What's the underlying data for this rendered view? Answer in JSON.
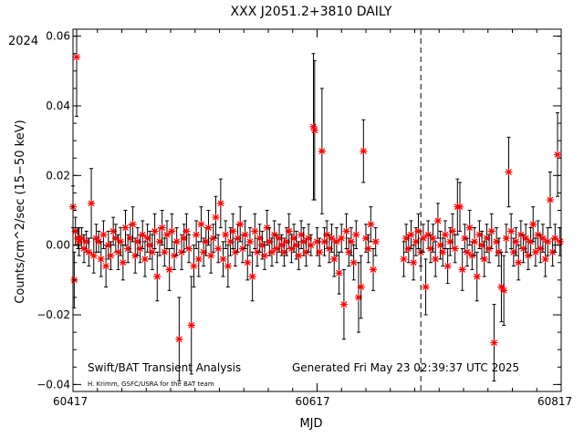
{
  "chart_data": {
    "type": "scatter",
    "title": "XXX J2051.2+3810 DAILY",
    "xlabel": "MJD",
    "ylabel": "Counts/cm^2/sec (15−50 keV)",
    "year_label": "2024",
    "xlim": [
      60417,
      60817
    ],
    "ylim": [
      -0.042,
      0.062
    ],
    "x_ticks": [
      60417,
      60617,
      60817
    ],
    "x_tick_labels": [
      "60417",
      "60617",
      "60817"
    ],
    "y_ticks": [
      -0.04,
      -0.02,
      0.0,
      0.02,
      0.04,
      0.06
    ],
    "y_tick_labels": [
      "−0.04",
      "−0.02",
      "0.00",
      "0.02",
      "0.04",
      "0.06"
    ],
    "marker_color": "#ff0000",
    "marker": "asterisk",
    "errorbar_color": "#000000",
    "reference_line_x": 60702,
    "footer_left": "Swift/BAT Transient Analysis",
    "footer_credit": "H. Krimm, GSFC/USRA for the BAT team",
    "footer_generated": "Generated Fri May 23 02:39:37 UTC 2025",
    "series": [
      {
        "points": [
          {
            "x": 60417,
            "y": 0.011,
            "err": 0.006
          },
          {
            "x": 60418,
            "y": -0.01,
            "err": 0.008
          },
          {
            "x": 60419,
            "y": 0.004,
            "err": 0.004
          },
          {
            "x": 60420,
            "y": 0.054,
            "err": 0.017
          },
          {
            "x": 60421,
            "y": 0.002,
            "err": 0.003
          },
          {
            "x": 60422,
            "y": 0.001,
            "err": 0.004
          },
          {
            "x": 60424,
            "y": 0.002,
            "err": 0.003
          },
          {
            "x": 60426,
            "y": -0.001,
            "err": 0.004
          },
          {
            "x": 60428,
            "y": 0.001,
            "err": 0.003
          },
          {
            "x": 60430,
            "y": -0.002,
            "err": 0.004
          },
          {
            "x": 60432,
            "y": 0.012,
            "err": 0.01
          },
          {
            "x": 60434,
            "y": -0.003,
            "err": 0.005
          },
          {
            "x": 60436,
            "y": 0.002,
            "err": 0.004
          },
          {
            "x": 60438,
            "y": 0.001,
            "err": 0.003
          },
          {
            "x": 60440,
            "y": -0.004,
            "err": 0.005
          },
          {
            "x": 60442,
            "y": 0.003,
            "err": 0.004
          },
          {
            "x": 60444,
            "y": -0.006,
            "err": 0.006
          },
          {
            "x": 60446,
            "y": 0.0,
            "err": 0.004
          },
          {
            "x": 60448,
            "y": -0.003,
            "err": 0.004
          },
          {
            "x": 60450,
            "y": 0.004,
            "err": 0.004
          },
          {
            "x": 60452,
            "y": 0.002,
            "err": 0.004
          },
          {
            "x": 60454,
            "y": -0.002,
            "err": 0.005
          },
          {
            "x": 60456,
            "y": 0.001,
            "err": 0.004
          },
          {
            "x": 60458,
            "y": -0.005,
            "err": 0.005
          },
          {
            "x": 60460,
            "y": 0.005,
            "err": 0.005
          },
          {
            "x": 60462,
            "y": -0.001,
            "err": 0.004
          },
          {
            "x": 60464,
            "y": 0.002,
            "err": 0.004
          },
          {
            "x": 60466,
            "y": 0.006,
            "err": 0.005
          },
          {
            "x": 60468,
            "y": -0.003,
            "err": 0.005
          },
          {
            "x": 60470,
            "y": 0.001,
            "err": 0.004
          },
          {
            "x": 60472,
            "y": -0.001,
            "err": 0.004
          },
          {
            "x": 60474,
            "y": 0.003,
            "err": 0.004
          },
          {
            "x": 60476,
            "y": -0.004,
            "err": 0.005
          },
          {
            "x": 60478,
            "y": 0.002,
            "err": 0.004
          },
          {
            "x": 60480,
            "y": 0.0,
            "err": 0.004
          },
          {
            "x": 60482,
            "y": -0.002,
            "err": 0.005
          },
          {
            "x": 60484,
            "y": 0.004,
            "err": 0.005
          },
          {
            "x": 60486,
            "y": -0.009,
            "err": 0.007
          },
          {
            "x": 60488,
            "y": 0.001,
            "err": 0.004
          },
          {
            "x": 60490,
            "y": 0.005,
            "err": 0.005
          },
          {
            "x": 60492,
            "y": -0.002,
            "err": 0.004
          },
          {
            "x": 60494,
            "y": 0.003,
            "err": 0.004
          },
          {
            "x": 60496,
            "y": -0.007,
            "err": 0.006
          },
          {
            "x": 60498,
            "y": 0.004,
            "err": 0.005
          },
          {
            "x": 60500,
            "y": -0.003,
            "err": 0.004
          },
          {
            "x": 60502,
            "y": 0.001,
            "err": 0.004
          },
          {
            "x": 60504,
            "y": -0.027,
            "err": 0.012
          },
          {
            "x": 60506,
            "y": -0.002,
            "err": 0.005
          },
          {
            "x": 60508,
            "y": 0.002,
            "err": 0.004
          },
          {
            "x": 60510,
            "y": 0.004,
            "err": 0.005
          },
          {
            "x": 60512,
            "y": -0.001,
            "err": 0.004
          },
          {
            "x": 60514,
            "y": -0.023,
            "err": 0.014
          },
          {
            "x": 60516,
            "y": -0.006,
            "err": 0.006
          },
          {
            "x": 60518,
            "y": 0.003,
            "err": 0.004
          },
          {
            "x": 60520,
            "y": -0.004,
            "err": 0.005
          },
          {
            "x": 60522,
            "y": 0.006,
            "err": 0.005
          },
          {
            "x": 60524,
            "y": -0.002,
            "err": 0.004
          },
          {
            "x": 60526,
            "y": 0.001,
            "err": 0.004
          },
          {
            "x": 60528,
            "y": 0.005,
            "err": 0.005
          },
          {
            "x": 60530,
            "y": -0.003,
            "err": 0.005
          },
          {
            "x": 60532,
            "y": 0.002,
            "err": 0.004
          },
          {
            "x": 60534,
            "y": 0.008,
            "err": 0.006
          },
          {
            "x": 60536,
            "y": -0.001,
            "err": 0.004
          },
          {
            "x": 60538,
            "y": 0.012,
            "err": 0.007
          },
          {
            "x": 60540,
            "y": -0.004,
            "err": 0.005
          },
          {
            "x": 60542,
            "y": 0.003,
            "err": 0.004
          },
          {
            "x": 60544,
            "y": -0.006,
            "err": 0.006
          },
          {
            "x": 60546,
            "y": 0.001,
            "err": 0.004
          },
          {
            "x": 60548,
            "y": 0.004,
            "err": 0.005
          },
          {
            "x": 60550,
            "y": -0.002,
            "err": 0.004
          },
          {
            "x": 60552,
            "y": 0.002,
            "err": 0.004
          },
          {
            "x": 60554,
            "y": 0.006,
            "err": 0.005
          },
          {
            "x": 60556,
            "y": -0.001,
            "err": 0.004
          },
          {
            "x": 60558,
            "y": 0.003,
            "err": 0.004
          },
          {
            "x": 60560,
            "y": -0.005,
            "err": 0.005
          },
          {
            "x": 60562,
            "y": 0.001,
            "err": 0.004
          },
          {
            "x": 60564,
            "y": -0.009,
            "err": 0.007
          },
          {
            "x": 60566,
            "y": 0.004,
            "err": 0.005
          },
          {
            "x": 60568,
            "y": -0.002,
            "err": 0.004
          },
          {
            "x": 60570,
            "y": 0.002,
            "err": 0.004
          },
          {
            "x": 60572,
            "y": 0.0,
            "err": 0.004
          },
          {
            "x": 60574,
            "y": -0.003,
            "err": 0.004
          },
          {
            "x": 60576,
            "y": 0.005,
            "err": 0.005
          },
          {
            "x": 60578,
            "y": 0.001,
            "err": 0.004
          },
          {
            "x": 60580,
            "y": -0.002,
            "err": 0.004
          },
          {
            "x": 60582,
            "y": 0.003,
            "err": 0.004
          },
          {
            "x": 60584,
            "y": -0.001,
            "err": 0.004
          },
          {
            "x": 60586,
            "y": 0.002,
            "err": 0.004
          },
          {
            "x": 60588,
            "y": 0.0,
            "err": 0.003
          },
          {
            "x": 60590,
            "y": -0.002,
            "err": 0.004
          },
          {
            "x": 60592,
            "y": 0.001,
            "err": 0.004
          },
          {
            "x": 60594,
            "y": 0.004,
            "err": 0.005
          },
          {
            "x": 60596,
            "y": -0.001,
            "err": 0.004
          },
          {
            "x": 60598,
            "y": 0.002,
            "err": 0.004
          },
          {
            "x": 60600,
            "y": 0.0,
            "err": 0.004
          },
          {
            "x": 60602,
            "y": -0.003,
            "err": 0.004
          },
          {
            "x": 60604,
            "y": 0.003,
            "err": 0.004
          },
          {
            "x": 60606,
            "y": 0.001,
            "err": 0.004
          },
          {
            "x": 60608,
            "y": -0.002,
            "err": 0.004
          },
          {
            "x": 60610,
            "y": 0.002,
            "err": 0.004
          },
          {
            "x": 60612,
            "y": 0.0,
            "err": 0.003
          },
          {
            "x": 60614,
            "y": 0.034,
            "err": 0.021
          },
          {
            "x": 60615,
            "y": 0.033,
            "err": 0.02
          },
          {
            "x": 60617,
            "y": 0.001,
            "err": 0.004
          },
          {
            "x": 60619,
            "y": -0.002,
            "err": 0.004
          },
          {
            "x": 60621,
            "y": 0.027,
            "err": 0.018
          },
          {
            "x": 60623,
            "y": 0.001,
            "err": 0.004
          },
          {
            "x": 60625,
            "y": 0.003,
            "err": 0.004
          },
          {
            "x": 60627,
            "y": -0.001,
            "err": 0.004
          },
          {
            "x": 60629,
            "y": 0.002,
            "err": 0.004
          },
          {
            "x": 60631,
            "y": -0.004,
            "err": 0.005
          },
          {
            "x": 60633,
            "y": 0.001,
            "err": 0.004
          },
          {
            "x": 60635,
            "y": -0.008,
            "err": 0.006
          },
          {
            "x": 60637,
            "y": 0.002,
            "err": 0.004
          },
          {
            "x": 60639,
            "y": -0.017,
            "err": 0.01
          },
          {
            "x": 60641,
            "y": 0.004,
            "err": 0.005
          },
          {
            "x": 60643,
            "y": -0.002,
            "err": 0.004
          },
          {
            "x": 60645,
            "y": 0.001,
            "err": 0.004
          },
          {
            "x": 60647,
            "y": -0.005,
            "err": 0.005
          },
          {
            "x": 60649,
            "y": 0.003,
            "err": 0.004
          },
          {
            "x": 60651,
            "y": -0.015,
            "err": 0.01
          },
          {
            "x": 60653,
            "y": -0.012,
            "err": 0.009
          },
          {
            "x": 60655,
            "y": 0.027,
            "err": 0.009
          },
          {
            "x": 60657,
            "y": 0.002,
            "err": 0.004
          },
          {
            "x": 60659,
            "y": -0.001,
            "err": 0.004
          },
          {
            "x": 60661,
            "y": 0.006,
            "err": 0.005
          },
          {
            "x": 60663,
            "y": -0.007,
            "err": 0.006
          },
          {
            "x": 60665,
            "y": 0.001,
            "err": 0.004
          },
          {
            "x": 60688,
            "y": -0.004,
            "err": 0.005
          },
          {
            "x": 60690,
            "y": 0.002,
            "err": 0.004
          },
          {
            "x": 60692,
            "y": -0.001,
            "err": 0.004
          },
          {
            "x": 60694,
            "y": 0.003,
            "err": 0.004
          },
          {
            "x": 60696,
            "y": -0.005,
            "err": 0.005
          },
          {
            "x": 60698,
            "y": 0.001,
            "err": 0.004
          },
          {
            "x": 60700,
            "y": 0.004,
            "err": 0.005
          },
          {
            "x": 60702,
            "y": -0.002,
            "err": 0.004
          },
          {
            "x": 60704,
            "y": 0.002,
            "err": 0.004
          },
          {
            "x": 60706,
            "y": -0.012,
            "err": 0.008
          },
          {
            "x": 60708,
            "y": 0.003,
            "err": 0.004
          },
          {
            "x": 60710,
            "y": -0.001,
            "err": 0.004
          },
          {
            "x": 60712,
            "y": 0.002,
            "err": 0.004
          },
          {
            "x": 60714,
            "y": -0.004,
            "err": 0.005
          },
          {
            "x": 60716,
            "y": 0.007,
            "err": 0.005
          },
          {
            "x": 60718,
            "y": 0.0,
            "err": 0.004
          },
          {
            "x": 60720,
            "y": -0.002,
            "err": 0.004
          },
          {
            "x": 60722,
            "y": 0.003,
            "err": 0.004
          },
          {
            "x": 60724,
            "y": -0.006,
            "err": 0.005
          },
          {
            "x": 60726,
            "y": 0.001,
            "err": 0.004
          },
          {
            "x": 60728,
            "y": 0.004,
            "err": 0.005
          },
          {
            "x": 60730,
            "y": -0.001,
            "err": 0.004
          },
          {
            "x": 60732,
            "y": 0.011,
            "err": 0.008
          },
          {
            "x": 60734,
            "y": 0.011,
            "err": 0.007
          },
          {
            "x": 60736,
            "y": -0.007,
            "err": 0.006
          },
          {
            "x": 60738,
            "y": 0.002,
            "err": 0.004
          },
          {
            "x": 60740,
            "y": -0.002,
            "err": 0.004
          },
          {
            "x": 60742,
            "y": 0.005,
            "err": 0.005
          },
          {
            "x": 60744,
            "y": -0.003,
            "err": 0.004
          },
          {
            "x": 60746,
            "y": 0.001,
            "err": 0.004
          },
          {
            "x": 60748,
            "y": -0.009,
            "err": 0.007
          },
          {
            "x": 60750,
            "y": 0.003,
            "err": 0.004
          },
          {
            "x": 60752,
            "y": 0.0,
            "err": 0.004
          },
          {
            "x": 60754,
            "y": -0.004,
            "err": 0.005
          },
          {
            "x": 60756,
            "y": 0.002,
            "err": 0.004
          },
          {
            "x": 60758,
            "y": -0.001,
            "err": 0.004
          },
          {
            "x": 60760,
            "y": 0.004,
            "err": 0.005
          },
          {
            "x": 60762,
            "y": -0.028,
            "err": 0.011
          },
          {
            "x": 60764,
            "y": 0.001,
            "err": 0.004
          },
          {
            "x": 60766,
            "y": -0.002,
            "err": 0.004
          },
          {
            "x": 60768,
            "y": -0.012,
            "err": 0.01
          },
          {
            "x": 60770,
            "y": -0.013,
            "err": 0.01
          },
          {
            "x": 60772,
            "y": 0.002,
            "err": 0.004
          },
          {
            "x": 60774,
            "y": 0.021,
            "err": 0.01
          },
          {
            "x": 60776,
            "y": 0.004,
            "err": 0.005
          },
          {
            "x": 60778,
            "y": -0.002,
            "err": 0.004
          },
          {
            "x": 60780,
            "y": 0.001,
            "err": 0.004
          },
          {
            "x": 60782,
            "y": -0.005,
            "err": 0.005
          },
          {
            "x": 60784,
            "y": 0.003,
            "err": 0.004
          },
          {
            "x": 60786,
            "y": -0.001,
            "err": 0.004
          },
          {
            "x": 60788,
            "y": 0.002,
            "err": 0.004
          },
          {
            "x": 60790,
            "y": -0.003,
            "err": 0.004
          },
          {
            "x": 60792,
            "y": 0.001,
            "err": 0.004
          },
          {
            "x": 60794,
            "y": 0.006,
            "err": 0.005
          },
          {
            "x": 60796,
            "y": -0.002,
            "err": 0.004
          },
          {
            "x": 60798,
            "y": 0.003,
            "err": 0.004
          },
          {
            "x": 60800,
            "y": -0.001,
            "err": 0.004
          },
          {
            "x": 60802,
            "y": 0.002,
            "err": 0.004
          },
          {
            "x": 60804,
            "y": -0.004,
            "err": 0.005
          },
          {
            "x": 60806,
            "y": 0.001,
            "err": 0.004
          },
          {
            "x": 60808,
            "y": 0.013,
            "err": 0.008
          },
          {
            "x": 60810,
            "y": -0.002,
            "err": 0.004
          },
          {
            "x": 60812,
            "y": 0.002,
            "err": 0.004
          },
          {
            "x": 60814,
            "y": 0.026,
            "err": 0.012
          },
          {
            "x": 60816,
            "y": 0.001,
            "err": 0.004
          }
        ]
      }
    ]
  }
}
